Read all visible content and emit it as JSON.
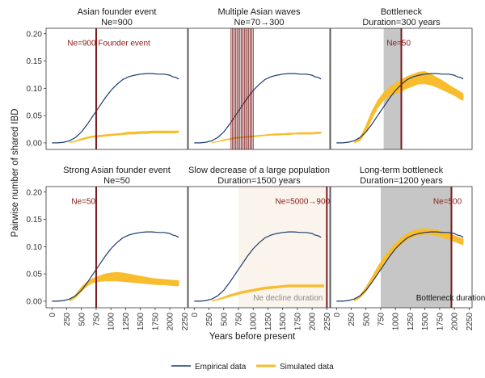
{
  "chart_data": {
    "type": "line",
    "xlabel": "Years before present",
    "ylabel": "Pairwise number of shared IBD",
    "xlim": [
      -100,
      2300
    ],
    "ylim": [
      -0.012,
      0.21
    ],
    "xticks": [
      0,
      250,
      500,
      750,
      1000,
      1250,
      1500,
      1750,
      2000,
      2250
    ],
    "yticks": [
      0.0,
      0.05,
      0.1,
      0.15,
      0.2
    ],
    "ytick_labels": [
      "0.00",
      "0.05",
      "0.10",
      "0.15",
      "0.20"
    ],
    "legend": {
      "position": "bottom",
      "entries": [
        {
          "label": "Empirical data",
          "color": "#1b3a6b"
        },
        {
          "label": "Simulated data",
          "color": "#f9bc2c"
        }
      ]
    },
    "empirical": {
      "x": [
        0,
        100,
        200,
        300,
        400,
        500,
        600,
        700,
        800,
        900,
        1000,
        1100,
        1200,
        1300,
        1400,
        1500,
        1600,
        1700,
        1800,
        1900,
        2000,
        2050,
        2100,
        2150
      ],
      "y": [
        0.0,
        0.0,
        0.0012,
        0.004,
        0.01,
        0.02,
        0.034,
        0.05,
        0.066,
        0.082,
        0.096,
        0.107,
        0.116,
        0.121,
        0.124,
        0.126,
        0.127,
        0.127,
        0.126,
        0.126,
        0.124,
        0.121,
        0.12,
        0.117
      ]
    },
    "panels": [
      {
        "title": "Asian founder event",
        "subtitle": "Ne=900",
        "vlines": [
          750
        ],
        "annotation": {
          "text": "Ne=900  Founder event",
          "x": 260,
          "y": 0.178,
          "style": "red"
        },
        "sim_x": [
          300,
          400,
          500,
          600,
          700,
          800,
          900,
          1000,
          1100,
          1200,
          1300,
          1400,
          1500,
          1600,
          1700,
          1800,
          1900,
          2000,
          2100,
          2150
        ],
        "sim_lower": [
          0.0,
          0.002,
          0.005,
          0.008,
          0.01,
          0.011,
          0.012,
          0.013,
          0.014,
          0.015,
          0.016,
          0.016,
          0.017,
          0.017,
          0.018,
          0.018,
          0.018,
          0.018,
          0.018,
          0.019
        ],
        "sim_upper": [
          0.001,
          0.004,
          0.008,
          0.011,
          0.013,
          0.014,
          0.015,
          0.016,
          0.017,
          0.018,
          0.02,
          0.02,
          0.021,
          0.021,
          0.022,
          0.022,
          0.022,
          0.022,
          0.022,
          0.022
        ]
      },
      {
        "title": "Multiple Asian waves",
        "subtitle": "Ne=70→300",
        "vlines": [
          625,
          650,
          675,
          700,
          725,
          750,
          775,
          800,
          825,
          850,
          875,
          900,
          925,
          950,
          975,
          1000
        ],
        "sim_x": [
          300,
          400,
          500,
          600,
          700,
          800,
          900,
          1000,
          1100,
          1200,
          1300,
          1400,
          1500,
          1600,
          1700,
          1800,
          1900,
          2000,
          2100,
          2150
        ],
        "sim_lower": [
          0.0,
          0.002,
          0.004,
          0.006,
          0.008,
          0.009,
          0.01,
          0.011,
          0.012,
          0.013,
          0.014,
          0.014,
          0.015,
          0.015,
          0.016,
          0.016,
          0.016,
          0.016,
          0.017,
          0.017
        ],
        "sim_upper": [
          0.001,
          0.003,
          0.006,
          0.008,
          0.01,
          0.011,
          0.012,
          0.013,
          0.014,
          0.015,
          0.016,
          0.017,
          0.017,
          0.018,
          0.018,
          0.019,
          0.019,
          0.019,
          0.02,
          0.02
        ]
      },
      {
        "title": "Bottleneck",
        "subtitle": "Duration=300 years",
        "shade": [
          800,
          1100
        ],
        "vlines": [
          1100
        ],
        "annotation": {
          "text": "Ne=50",
          "x": 850,
          "y": 0.178,
          "style": "red"
        },
        "sim_x": [
          300,
          400,
          500,
          600,
          700,
          800,
          900,
          1000,
          1100,
          1200,
          1300,
          1400,
          1500,
          1600,
          1700,
          1800,
          1900,
          2000,
          2100,
          2150
        ],
        "sim_lower": [
          0.0,
          0.004,
          0.02,
          0.044,
          0.064,
          0.078,
          0.086,
          0.09,
          0.094,
          0.1,
          0.104,
          0.108,
          0.108,
          0.106,
          0.102,
          0.097,
          0.092,
          0.087,
          0.08,
          0.078
        ],
        "sim_upper": [
          0.001,
          0.01,
          0.032,
          0.058,
          0.078,
          0.092,
          0.102,
          0.11,
          0.116,
          0.122,
          0.126,
          0.13,
          0.131,
          0.126,
          0.12,
          0.114,
          0.107,
          0.1,
          0.094,
          0.09
        ]
      },
      {
        "title": "Strong Asian founder event",
        "subtitle": "Ne=50",
        "vlines": [
          750
        ],
        "annotation": {
          "text": "Ne=50",
          "x": 330,
          "y": 0.178,
          "style": "red"
        },
        "sim_x": [
          300,
          400,
          500,
          600,
          700,
          800,
          900,
          1000,
          1100,
          1200,
          1300,
          1400,
          1500,
          1600,
          1700,
          1800,
          1900,
          2000,
          2100,
          2150
        ],
        "sim_lower": [
          0.0,
          0.006,
          0.018,
          0.028,
          0.034,
          0.036,
          0.037,
          0.037,
          0.037,
          0.036,
          0.035,
          0.034,
          0.033,
          0.032,
          0.031,
          0.03,
          0.03,
          0.029,
          0.028,
          0.028
        ],
        "sim_upper": [
          0.002,
          0.012,
          0.026,
          0.036,
          0.042,
          0.046,
          0.05,
          0.052,
          0.053,
          0.052,
          0.05,
          0.048,
          0.046,
          0.044,
          0.042,
          0.041,
          0.04,
          0.039,
          0.038,
          0.038
        ]
      },
      {
        "title": "Slow decrease of a large population",
        "subtitle": "Duration=1500 years",
        "shade_light": [
          750,
          2250
        ],
        "vlines": [
          2250
        ],
        "annotation": {
          "text": "Ne=5000→900",
          "x": 1375,
          "y": 0.178,
          "style": "red"
        },
        "annotation2": {
          "text": "Ne decline duration",
          "x": 1000,
          "y": 0.0,
          "style": "grey"
        },
        "sim_x": [
          300,
          400,
          500,
          600,
          700,
          800,
          900,
          1000,
          1100,
          1200,
          1300,
          1400,
          1500,
          1600,
          1700,
          1800,
          1900,
          2000,
          2100,
          2200
        ],
        "sim_lower": [
          0.0,
          0.002,
          0.005,
          0.008,
          0.011,
          0.014,
          0.016,
          0.018,
          0.02,
          0.022,
          0.023,
          0.024,
          0.025,
          0.026,
          0.026,
          0.026,
          0.026,
          0.026,
          0.026,
          0.026
        ],
        "sim_upper": [
          0.001,
          0.004,
          0.008,
          0.012,
          0.015,
          0.018,
          0.02,
          0.022,
          0.024,
          0.026,
          0.027,
          0.028,
          0.029,
          0.03,
          0.03,
          0.03,
          0.03,
          0.03,
          0.03,
          0.03
        ]
      },
      {
        "title": "Long-term bottleneck",
        "subtitle": "Duration=1200 years",
        "shade": [
          750,
          1950
        ],
        "vlines": [
          1950
        ],
        "annotation": {
          "text": "Ne=500",
          "x": 1640,
          "y": 0.178,
          "style": "red"
        },
        "annotation2": {
          "text": "Bottleneck duration",
          "x": 1350,
          "y": 0.0,
          "style": "dark"
        },
        "sim_x": [
          300,
          400,
          500,
          600,
          700,
          800,
          900,
          1000,
          1100,
          1200,
          1300,
          1400,
          1500,
          1600,
          1700,
          1800,
          1900,
          2000,
          2100,
          2150
        ],
        "sim_lower": [
          0.0,
          0.006,
          0.018,
          0.034,
          0.052,
          0.068,
          0.082,
          0.094,
          0.104,
          0.112,
          0.118,
          0.121,
          0.123,
          0.122,
          0.12,
          0.117,
          0.113,
          0.109,
          0.105,
          0.103
        ],
        "sim_upper": [
          0.002,
          0.011,
          0.026,
          0.044,
          0.063,
          0.08,
          0.094,
          0.106,
          0.116,
          0.124,
          0.129,
          0.132,
          0.133,
          0.132,
          0.13,
          0.128,
          0.124,
          0.12,
          0.116,
          0.114
        ]
      }
    ]
  }
}
